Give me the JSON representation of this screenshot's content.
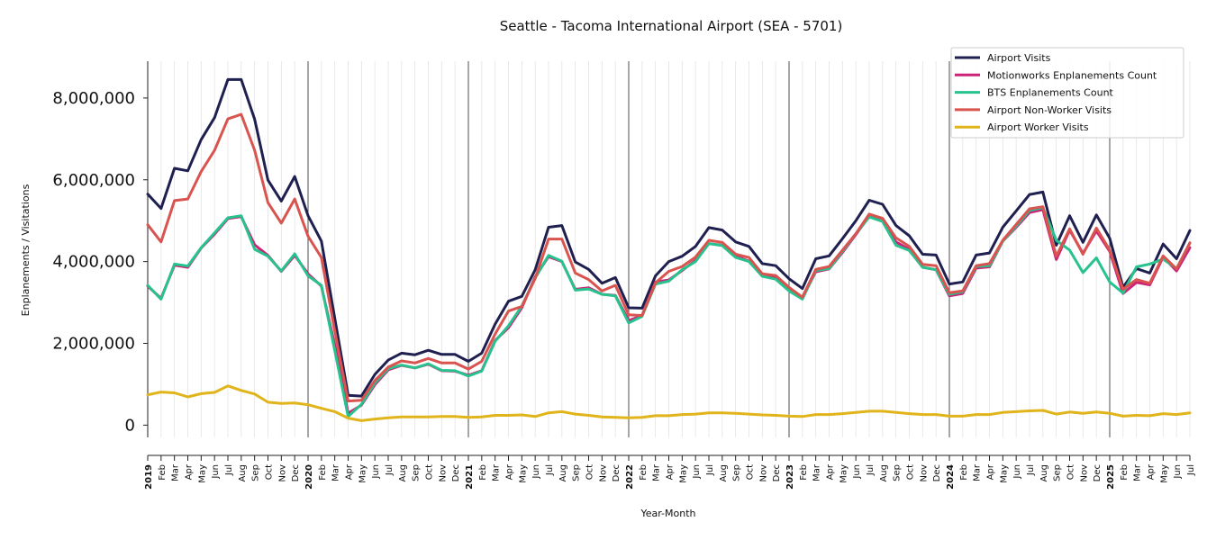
{
  "chart_data": {
    "type": "line",
    "title": "Seattle - Tacoma International Airport (SEA - 5701)",
    "xlabel": "Year-Month",
    "ylabel": "Enplanements / Visitations",
    "ylim": [
      -300000,
      8900000
    ],
    "yticks": [
      0,
      2000000,
      4000000,
      6000000,
      8000000
    ],
    "ytick_labels": [
      "0",
      "2,000,000",
      "4,000,000",
      "6,000,000",
      "8,000,000"
    ],
    "x": [
      "2019-01",
      "2019-02",
      "2019-03",
      "2019-04",
      "2019-05",
      "2019-06",
      "2019-07",
      "2019-08",
      "2019-09",
      "2019-10",
      "2019-11",
      "2019-12",
      "2020-01",
      "2020-02",
      "2020-03",
      "2020-04",
      "2020-05",
      "2020-06",
      "2020-07",
      "2020-08",
      "2020-09",
      "2020-10",
      "2020-11",
      "2020-12",
      "2021-01",
      "2021-02",
      "2021-03",
      "2021-04",
      "2021-05",
      "2021-06",
      "2021-07",
      "2021-08",
      "2021-09",
      "2021-10",
      "2021-11",
      "2021-12",
      "2022-01",
      "2022-02",
      "2022-03",
      "2022-04",
      "2022-05",
      "2022-06",
      "2022-07",
      "2022-08",
      "2022-09",
      "2022-10",
      "2022-11",
      "2022-12",
      "2023-01",
      "2023-02",
      "2023-03",
      "2023-04",
      "2023-05",
      "2023-06",
      "2023-07",
      "2023-08",
      "2023-09",
      "2023-10",
      "2023-11",
      "2023-12",
      "2024-01",
      "2024-02",
      "2024-03",
      "2024-04",
      "2024-05",
      "2024-06",
      "2024-07",
      "2024-08",
      "2024-09",
      "2024-10",
      "2024-11",
      "2024-12",
      "2025-01",
      "2025-02",
      "2025-03",
      "2025-04",
      "2025-05",
      "2025-06",
      "2025-07"
    ],
    "x_tick_labels": [
      "2019",
      "Feb",
      "Mar",
      "Apr",
      "May",
      "Jun",
      "Jul",
      "Aug",
      "Sep",
      "Oct",
      "Nov",
      "Dec",
      "2020",
      "Feb",
      "Mar",
      "Apr",
      "May",
      "Jun",
      "Jul",
      "Aug",
      "Sep",
      "Oct",
      "Nov",
      "Dec",
      "2021",
      "Feb",
      "Mar",
      "Apr",
      "May",
      "Jun",
      "Jul",
      "Aug",
      "Sep",
      "Oct",
      "Nov",
      "Dec",
      "2022",
      "Feb",
      "Mar",
      "Apr",
      "May",
      "Jun",
      "Jul",
      "Aug",
      "Sep",
      "Oct",
      "Nov",
      "Dec",
      "2023",
      "Feb",
      "Mar",
      "Apr",
      "May",
      "Jun",
      "Jul",
      "Aug",
      "Sep",
      "Oct",
      "Nov",
      "Dec",
      "2024",
      "Feb",
      "Mar",
      "Apr",
      "May",
      "Jun",
      "Jul",
      "Aug",
      "Sep",
      "Oct",
      "Nov",
      "Dec",
      "2025",
      "Feb",
      "Mar",
      "Apr",
      "May",
      "Jun",
      "Jul"
    ],
    "legend_position": "top-right",
    "grid": "vertical",
    "series": [
      {
        "name": "Airport Visits",
        "color": "#1f2050",
        "values": [
          5650000,
          5300000,
          6280000,
          6220000,
          6980000,
          7520000,
          8450000,
          8450000,
          7480000,
          5990000,
          5480000,
          6080000,
          5120000,
          4500000,
          2610000,
          730000,
          710000,
          1240000,
          1590000,
          1760000,
          1720000,
          1830000,
          1730000,
          1730000,
          1560000,
          1760000,
          2470000,
          3030000,
          3150000,
          3800000,
          4840000,
          4880000,
          3990000,
          3810000,
          3470000,
          3610000,
          2870000,
          2860000,
          3650000,
          4000000,
          4130000,
          4370000,
          4830000,
          4770000,
          4480000,
          4370000,
          3950000,
          3900000,
          3580000,
          3340000,
          4070000,
          4140000,
          4560000,
          5000000,
          5500000,
          5400000,
          4880000,
          4630000,
          4180000,
          4160000,
          3450000,
          3500000,
          4160000,
          4210000,
          4840000,
          5240000,
          5640000,
          5700000,
          4400000,
          5120000,
          4470000,
          5140000,
          4570000,
          3370000,
          3830000,
          3720000,
          4430000,
          4070000,
          4760000
        ]
      },
      {
        "name": "Motionworks Enplanements Count",
        "color": "#cc2277",
        "values": [
          3400000,
          3100000,
          3910000,
          3860000,
          4330000,
          4670000,
          5050000,
          5100000,
          4410000,
          4150000,
          3760000,
          4150000,
          3700000,
          3400000,
          1950000,
          290000,
          490000,
          990000,
          1350000,
          1460000,
          1400000,
          1490000,
          1330000,
          1320000,
          1220000,
          1330000,
          2070000,
          2380000,
          2870000,
          3630000,
          4120000,
          4000000,
          3320000,
          3360000,
          3200000,
          3170000,
          2560000,
          2680000,
          3500000,
          3550000,
          3780000,
          4030000,
          4440000,
          4400000,
          4130000,
          4010000,
          3680000,
          3600000,
          3320000,
          3110000,
          3750000,
          3820000,
          4220000,
          4660000,
          5110000,
          4990000,
          4480000,
          4300000,
          3860000,
          3800000,
          3160000,
          3220000,
          3840000,
          3870000,
          4500000,
          4840000,
          5200000,
          5270000,
          4050000,
          4770000,
          4200000,
          4750000,
          4250000,
          3220000,
          3490000,
          3430000,
          4110000,
          3770000,
          4340000
        ]
      },
      {
        "name": "BTS Enplanements Count",
        "color": "#27c28d",
        "values": [
          3420000,
          3080000,
          3940000,
          3890000,
          4340000,
          4700000,
          5070000,
          5120000,
          4300000,
          4130000,
          3770000,
          4190000,
          3650000,
          3420000,
          1820000,
          210000,
          510000,
          1030000,
          1380000,
          1470000,
          1400000,
          1500000,
          1340000,
          1330000,
          1200000,
          1320000,
          2050000,
          2430000,
          2910000,
          3600000,
          4150000,
          4010000,
          3300000,
          3330000,
          3200000,
          3160000,
          2500000,
          2660000,
          3450000,
          3520000,
          3800000,
          4000000,
          4440000,
          4390000,
          4100000,
          4000000,
          3640000,
          3570000,
          3280000,
          3080000,
          3780000,
          3830000,
          4250000,
          4680000,
          5090000,
          4980000,
          4400000,
          4270000,
          3860000,
          3800000,
          3200000,
          3260000,
          3880000,
          3900000,
          4500000,
          4870000,
          5250000,
          5320000,
          4520000,
          4280000,
          3730000,
          4090000,
          3500000,
          3230000,
          3870000,
          3940000,
          4060000,
          3830000,
          4450000
        ]
      },
      {
        "name": "Airport Non-Worker Visits",
        "color": "#d9534f",
        "values": [
          4900000,
          4480000,
          5490000,
          5530000,
          6200000,
          6720000,
          7490000,
          7600000,
          6720000,
          5440000,
          4940000,
          5530000,
          4620000,
          4100000,
          2300000,
          590000,
          610000,
          1090000,
          1420000,
          1570000,
          1520000,
          1630000,
          1520000,
          1520000,
          1370000,
          1560000,
          2230000,
          2790000,
          2900000,
          3590000,
          4550000,
          4550000,
          3720000,
          3560000,
          3280000,
          3420000,
          2700000,
          2680000,
          3480000,
          3760000,
          3880000,
          4110000,
          4520000,
          4470000,
          4180000,
          4100000,
          3700000,
          3660000,
          3370000,
          3130000,
          3810000,
          3880000,
          4280000,
          4680000,
          5160000,
          5060000,
          4580000,
          4370000,
          3930000,
          3900000,
          3240000,
          3280000,
          3900000,
          3950000,
          4520000,
          4910000,
          5290000,
          5340000,
          4130000,
          4800000,
          4180000,
          4820000,
          4280000,
          3320000,
          3560000,
          3470000,
          4140000,
          3820000,
          4460000
        ]
      },
      {
        "name": "Airport Worker Visits",
        "color": "#e0b41a",
        "values": [
          740000,
          810000,
          790000,
          690000,
          770000,
          800000,
          960000,
          850000,
          760000,
          560000,
          530000,
          540000,
          500000,
          410000,
          330000,
          170000,
          110000,
          150000,
          180000,
          200000,
          200000,
          200000,
          210000,
          210000,
          190000,
          200000,
          240000,
          240000,
          250000,
          210000,
          300000,
          330000,
          270000,
          240000,
          200000,
          190000,
          180000,
          190000,
          230000,
          230000,
          260000,
          270000,
          300000,
          300000,
          290000,
          270000,
          250000,
          240000,
          220000,
          210000,
          260000,
          260000,
          280000,
          310000,
          340000,
          340000,
          310000,
          280000,
          260000,
          260000,
          220000,
          220000,
          260000,
          260000,
          310000,
          330000,
          350000,
          360000,
          270000,
          320000,
          290000,
          320000,
          290000,
          220000,
          240000,
          230000,
          280000,
          260000,
          300000
        ]
      }
    ]
  }
}
